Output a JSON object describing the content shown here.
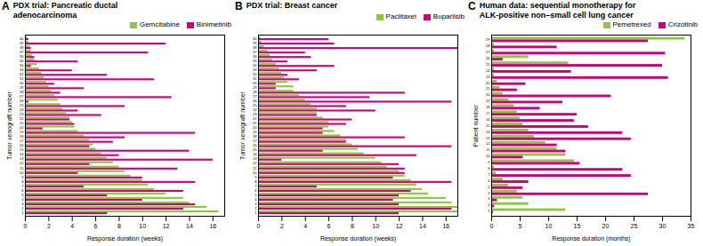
{
  "chart_data": [
    {
      "type": "bar",
      "orientation": "horizontal",
      "title": "PDX trial: Pancreatic ductal\nadenocarcinoma",
      "annotations": [
        "A"
      ],
      "xlabel": "Response duration (weeks)",
      "ylabel": "Tumor xenograft number",
      "categories": [
        "40",
        "39",
        "38",
        "37",
        "36",
        "35",
        "34",
        "33",
        "32",
        "31",
        "30",
        "29",
        "28",
        "27",
        "26",
        "25",
        "24",
        "23",
        "22",
        "21",
        "20",
        "19",
        "18",
        "17",
        "16",
        "15",
        "14",
        "13",
        "12",
        "11",
        "10",
        "9",
        "8",
        "7",
        "6",
        "5",
        "4",
        "3",
        "2",
        "1"
      ],
      "series": [
        {
          "name": "Gemcitabine",
          "color": "#8dc63f",
          "values": [
            0.2,
            0.3,
            0.4,
            0.5,
            0.6,
            0.8,
            1.0,
            1.2,
            1.4,
            1.6,
            1.8,
            2.0,
            2.2,
            2.5,
            2.8,
            3.0,
            3.2,
            3.5,
            3.8,
            4.0,
            4.2,
            4.5,
            5.0,
            5.5,
            5.8,
            6.0,
            6.5,
            7.0,
            7.5,
            8.0,
            8.5,
            9.0,
            10.0,
            10.5,
            11.0,
            12.0,
            13.5,
            14.0,
            15.5,
            16.5
          ]
        },
        {
          "name": "Binimetinib",
          "color": "#cc007a",
          "values": [
            0.3,
            12.0,
            0.5,
            10.5,
            0.8,
            4.5,
            0.5,
            4.0,
            7.0,
            11.0,
            2.5,
            5.0,
            3.0,
            12.5,
            0.3,
            8.5,
            4.5,
            6.5,
            3.8,
            4.2,
            1.5,
            14.5,
            8.5,
            7.5,
            5.5,
            14.0,
            8.0,
            16.0,
            5.5,
            13.0,
            4.5,
            10.0,
            14.5,
            5.0,
            13.5,
            7.0,
            10.0,
            14.5,
            13.5,
            7.0
          ]
        }
      ],
      "xlim": [
        0,
        17
      ],
      "xticks": [
        0,
        2,
        4,
        6,
        8,
        10,
        12,
        14,
        16
      ],
      "legend": "upper right",
      "grid": false
    },
    {
      "type": "bar",
      "orientation": "horizontal",
      "title": "PDX trial: Breast cancer",
      "annotations": [
        "B"
      ],
      "xlabel": "Response duration (weeks)",
      "ylabel": "Tumor xenograft number",
      "categories": [
        "40",
        "39",
        "38",
        "37",
        "36",
        "35",
        "34",
        "33",
        "32",
        "31",
        "30",
        "29",
        "28",
        "27",
        "26",
        "25",
        "24",
        "23",
        "22",
        "21",
        "20",
        "19",
        "18",
        "17",
        "16",
        "15",
        "14",
        "13",
        "12",
        "11",
        "10",
        "9",
        "8",
        "7",
        "6",
        "5",
        "4",
        "3",
        "2",
        "1"
      ],
      "series": [
        {
          "name": "Paclitaxel",
          "color": "#8dc63f",
          "values": [
            0.2,
            0.3,
            0.5,
            0.8,
            1.0,
            1.2,
            1.5,
            1.8,
            2.0,
            2.2,
            2.5,
            3.0,
            3.0,
            3.5,
            4.0,
            4.5,
            5.0,
            5.0,
            5.5,
            6.0,
            6.0,
            6.5,
            7.0,
            7.5,
            8.0,
            8.5,
            9.0,
            10.0,
            10.5,
            11.0,
            12.0,
            12.5,
            13.0,
            13.5,
            14.0,
            14.5,
            16.0,
            16.5,
            17.0,
            17.0
          ]
        },
        {
          "name": "Buparlisib",
          "color": "#cc007a",
          "values": [
            6.0,
            6.5,
            17.0,
            4.0,
            4.5,
            2.5,
            6.5,
            5.0,
            2.5,
            3.5,
            1.5,
            1.5,
            12.5,
            9.5,
            16.5,
            7.5,
            10.0,
            5.0,
            8.0,
            7.5,
            5.5,
            5.5,
            12.5,
            7.5,
            16.5,
            5.5,
            13.5,
            2.0,
            12.0,
            12.5,
            12.5,
            11.5,
            16.5,
            5.0,
            13.0,
            12.0,
            11.5,
            12.0,
            16.5,
            12.0
          ]
        }
      ],
      "xlim": [
        0,
        17
      ],
      "xticks": [
        0,
        2,
        4,
        6,
        8,
        10,
        12,
        14,
        16
      ],
      "legend": "upper right",
      "grid": false
    },
    {
      "type": "bar",
      "orientation": "horizontal",
      "title": "Human data: sequential monotherapy for\nALK-positive non–small cell lung cancer",
      "annotations": [
        "C"
      ],
      "xlabel": "Response duration (months)",
      "ylabel": "Patient number",
      "categories": [
        "29",
        "28",
        "27",
        "26",
        "25",
        "24",
        "23",
        "22",
        "21",
        "20",
        "19",
        "18",
        "17",
        "16",
        "15",
        "14",
        "13",
        "12",
        "11",
        "10",
        "9",
        "8",
        "7",
        "6",
        "5",
        "4",
        "3",
        "2",
        "1"
      ],
      "series": [
        {
          "name": "Pemetrexed",
          "color": "#8dc63f",
          "values": [
            34.0,
            0.5,
            0.5,
            6.5,
            13.5,
            0.5,
            0.5,
            1.0,
            1.5,
            2.0,
            3.0,
            4.0,
            4.5,
            5.0,
            5.5,
            6.5,
            7.5,
            9.5,
            11.5,
            13.0,
            14.5,
            0.5,
            0.8,
            2.0,
            3.0,
            4.5,
            5.5,
            6.5,
            13.0
          ]
        },
        {
          "name": "Crizotinib",
          "color": "#cc007a",
          "values": [
            27.5,
            11.5,
            30.5,
            2.0,
            30.0,
            14.0,
            31.0,
            6.0,
            4.5,
            21.0,
            12.5,
            8.5,
            15.0,
            14.5,
            17.0,
            23.0,
            24.5,
            11.5,
            13.0,
            5.5,
            15.5,
            23.0,
            24.5,
            6.5,
            5.5,
            27.5,
            1.0,
            0.5,
            0.3
          ]
        }
      ],
      "xlim": [
        0,
        35
      ],
      "xticks": [
        0,
        5,
        10,
        15,
        20,
        25,
        30,
        35
      ],
      "legend": "upper right",
      "grid": false
    }
  ]
}
